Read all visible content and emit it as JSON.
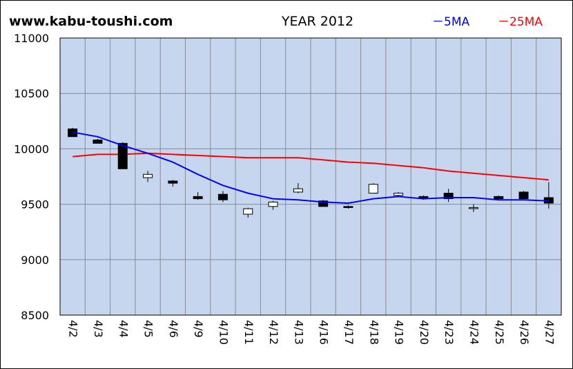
{
  "header": {
    "site": "www.kabu-toushi.com",
    "title": "YEAR 2012",
    "legend_ma5": "－5MA",
    "legend_ma25": "－25MA"
  },
  "colors": {
    "plot_bg": "#c6d6ee",
    "grid": "#8a8a8a",
    "ma5": "#0000ff",
    "ma25": "#ff0000",
    "candle_up": "#ffffff",
    "candle_down": "#000000"
  },
  "chart_data": {
    "type": "candlestick",
    "title": "YEAR 2012",
    "ylim": [
      8500,
      11000
    ],
    "yticks": [
      8500,
      9000,
      9500,
      10000,
      10500,
      11000
    ],
    "grid": true,
    "legend": "top-right",
    "categories": [
      "4/2",
      "4/3",
      "4/4",
      "4/5",
      "4/6",
      "4/9",
      "4/10",
      "4/11",
      "4/12",
      "4/13",
      "4/16",
      "4/17",
      "4/18",
      "4/19",
      "4/20",
      "4/23",
      "4/24",
      "4/25",
      "4/26",
      "4/27"
    ],
    "candles": [
      {
        "open": 10180,
        "high": 10190,
        "low": 10110,
        "close": 10110
      },
      {
        "open": 10080,
        "high": 10090,
        "low": 10050,
        "close": 10050
      },
      {
        "open": 10050,
        "high": 10060,
        "low": 9820,
        "close": 9820
      },
      {
        "open": 9740,
        "high": 9800,
        "low": 9700,
        "close": 9770
      },
      {
        "open": 9710,
        "high": 9720,
        "low": 9660,
        "close": 9690
      },
      {
        "open": 9570,
        "high": 9610,
        "low": 9540,
        "close": 9550
      },
      {
        "open": 9590,
        "high": 9620,
        "low": 9520,
        "close": 9540
      },
      {
        "open": 9410,
        "high": 9470,
        "low": 9380,
        "close": 9460
      },
      {
        "open": 9480,
        "high": 9530,
        "low": 9450,
        "close": 9520
      },
      {
        "open": 9610,
        "high": 9690,
        "low": 9600,
        "close": 9640
      },
      {
        "open": 9530,
        "high": 9540,
        "low": 9480,
        "close": 9480
      },
      {
        "open": 9480,
        "high": 9490,
        "low": 9460,
        "close": 9470
      },
      {
        "open": 9600,
        "high": 9690,
        "low": 9600,
        "close": 9680
      },
      {
        "open": 9580,
        "high": 9610,
        "low": 9570,
        "close": 9600
      },
      {
        "open": 9570,
        "high": 9580,
        "low": 9540,
        "close": 9550
      },
      {
        "open": 9600,
        "high": 9640,
        "low": 9520,
        "close": 9550
      },
      {
        "open": 9470,
        "high": 9500,
        "low": 9430,
        "close": 9470
      },
      {
        "open": 9570,
        "high": 9580,
        "low": 9540,
        "close": 9550
      },
      {
        "open": 9610,
        "high": 9620,
        "low": 9550,
        "close": 9550
      },
      {
        "open": 9560,
        "high": 9700,
        "low": 9460,
        "close": 9510
      }
    ],
    "series": [
      {
        "name": "5MA",
        "values": [
          10150,
          10110,
          10030,
          9960,
          9880,
          9770,
          9670,
          9600,
          9550,
          9540,
          9520,
          9510,
          9550,
          9570,
          9550,
          9560,
          9560,
          9540,
          9540,
          9530
        ]
      },
      {
        "name": "25MA",
        "values": [
          9930,
          9950,
          9950,
          9960,
          9950,
          9940,
          9930,
          9920,
          9920,
          9920,
          9900,
          9880,
          9870,
          9850,
          9830,
          9800,
          9780,
          9760,
          9740,
          9720
        ]
      }
    ]
  }
}
